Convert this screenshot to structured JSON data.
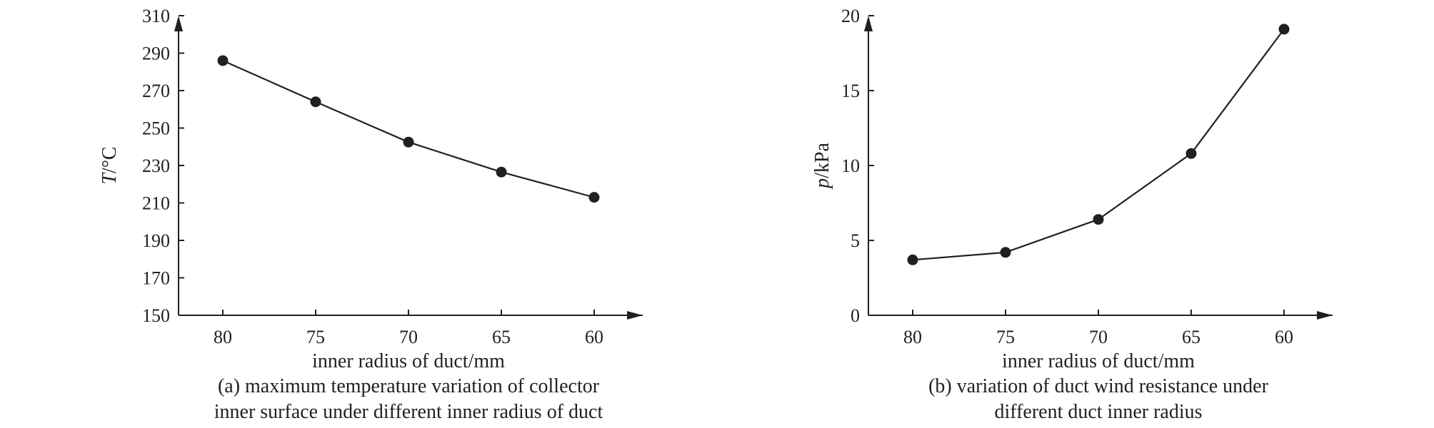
{
  "chart_data": [
    {
      "type": "line",
      "x": [
        80,
        75,
        70,
        65,
        60
      ],
      "categories": [
        "80",
        "75",
        "70",
        "65",
        "60"
      ],
      "values": [
        286,
        264,
        242.5,
        226.5,
        213
      ],
      "ylim": [
        150,
        310
      ],
      "yticks": [
        "150",
        "170",
        "190",
        "210",
        "230",
        "250",
        "270",
        "290",
        "310"
      ],
      "xlabel": "inner radius of duct/mm",
      "ylabel_var": "T",
      "ylabel_unit": "/°C",
      "caption_lines": [
        "(a) maximum temperature variation of collector",
        "inner surface under different inner radius of duct"
      ],
      "grid": false,
      "legend": "none"
    },
    {
      "type": "line",
      "x": [
        80,
        75,
        70,
        65,
        60
      ],
      "categories": [
        "80",
        "75",
        "70",
        "65",
        "60"
      ],
      "values": [
        3.7,
        4.2,
        6.4,
        10.8,
        19.1
      ],
      "ylim": [
        0,
        20
      ],
      "yticks": [
        "0",
        "5",
        "10",
        "15",
        "20"
      ],
      "xlabel": "inner radius of duct/mm",
      "ylabel_var": "p",
      "ylabel_unit": "/kPa",
      "caption_lines": [
        "(b) variation of duct wind resistance under",
        "different duct inner radius"
      ],
      "grid": false,
      "legend": "none"
    }
  ]
}
